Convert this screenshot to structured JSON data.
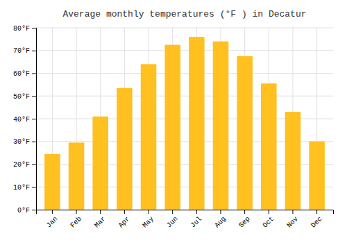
{
  "chart_data": {
    "type": "bar",
    "title": "Average monthly temperatures (°F ) in Decatur",
    "categories": [
      "Jan",
      "Feb",
      "Mar",
      "Apr",
      "May",
      "Jun",
      "Jul",
      "Aug",
      "Sep",
      "Oct",
      "Nov",
      "Dec"
    ],
    "values": [
      24.5,
      29.5,
      41.0,
      53.5,
      64.0,
      72.5,
      76.0,
      74.0,
      67.5,
      55.5,
      43.0,
      30.0
    ],
    "color": "#FFC020",
    "ylim": [
      0,
      80
    ],
    "yticks": [
      {
        "value": 0,
        "label": "0°F"
      },
      {
        "value": 10,
        "label": "10°F"
      },
      {
        "value": 20,
        "label": "20°F"
      },
      {
        "value": 30,
        "label": "30°F"
      },
      {
        "value": 40,
        "label": "40°F"
      },
      {
        "value": 50,
        "label": "50°F"
      },
      {
        "value": 60,
        "label": "60°F"
      },
      {
        "value": 70,
        "label": "70°F"
      },
      {
        "value": 80,
        "label": "80°F"
      }
    ],
    "grid": true
  }
}
